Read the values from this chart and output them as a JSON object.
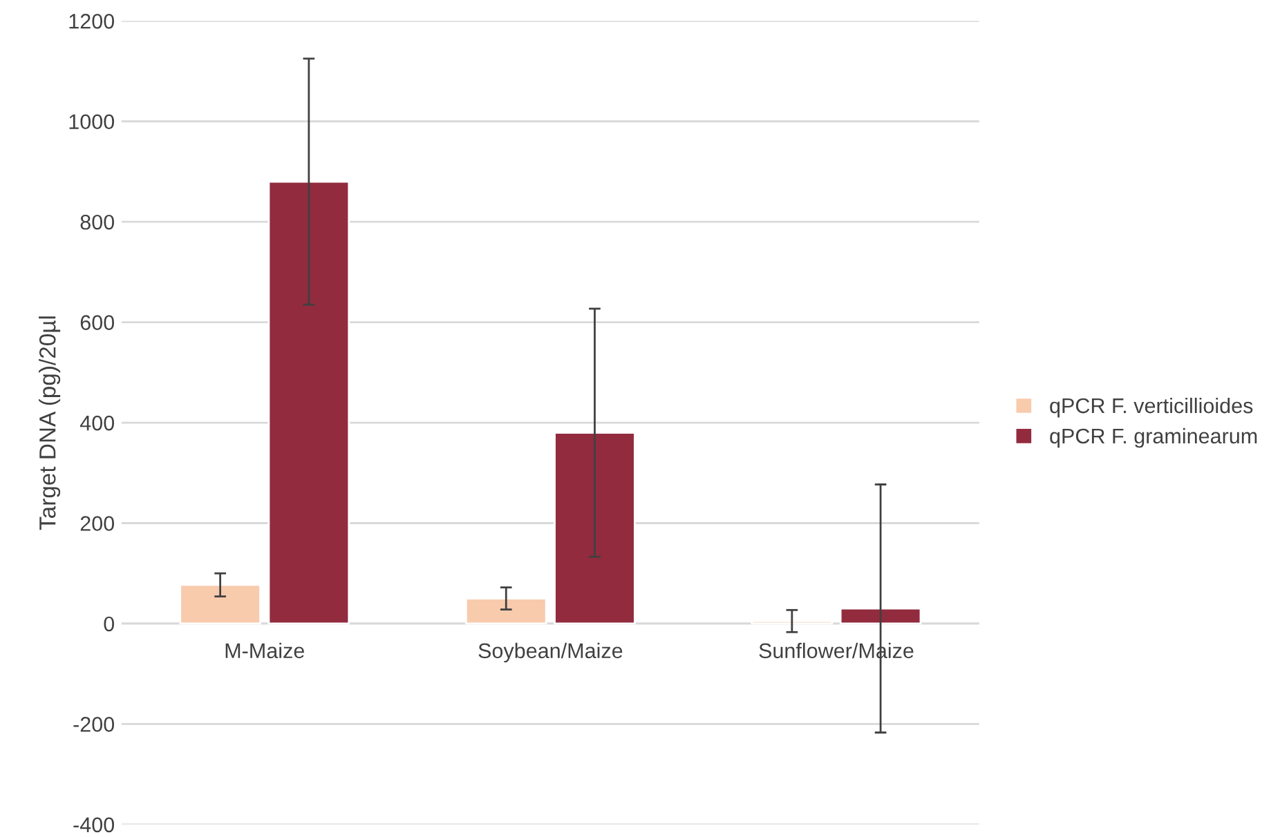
{
  "chart_data": {
    "type": "bar",
    "ylabel": "Target DNA (pg)/20µl",
    "categories": [
      "M-Maize",
      "Soybean/Maize",
      "Sunflower/Maize"
    ],
    "series": [
      {
        "name": "qPCR F. verticillioides",
        "color": "#f8cbad",
        "values": [
          77,
          50,
          5
        ],
        "errors": [
          23,
          22,
          22
        ]
      },
      {
        "name": "qPCR F. graminearum",
        "color": "#922b3e",
        "values": [
          880,
          380,
          30
        ],
        "errors": [
          245,
          247,
          247
        ]
      }
    ],
    "ylim": [
      -400,
      1200
    ],
    "yticks": [
      -400,
      -200,
      0,
      200,
      400,
      600,
      800,
      1000,
      1200
    ],
    "grid": "y",
    "legend": "right"
  }
}
